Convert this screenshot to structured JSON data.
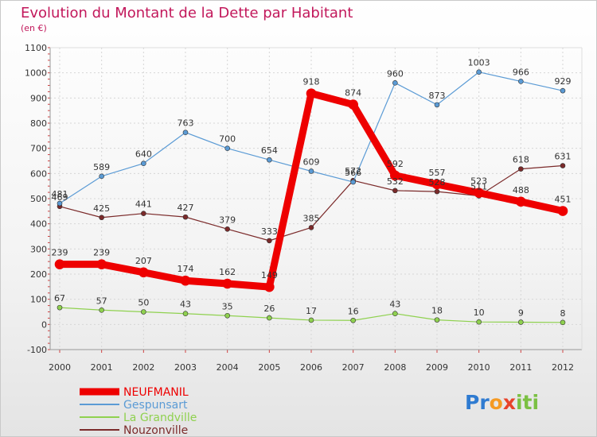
{
  "chart_data": {
    "type": "line",
    "title": "Evolution du Montant de la Dette par Habitant",
    "subtitle": "(en €)",
    "xlabel": "",
    "ylabel": "",
    "ylim": [
      -100,
      1100
    ],
    "y_ticks": [
      "-100",
      "0",
      "100",
      "200",
      "300",
      "400",
      "500",
      "600",
      "700",
      "800",
      "900",
      "1000",
      "1100"
    ],
    "categories": [
      "2000",
      "2001",
      "2002",
      "2003",
      "2004",
      "2005",
      "2006",
      "2007",
      "2008",
      "2009",
      "2010",
      "2011",
      "2012"
    ],
    "grid": true,
    "legend_position": "bottom-left",
    "series": [
      {
        "name": "NEUFMANIL",
        "color": "#ee0000",
        "values": [
          239,
          239,
          207,
          174,
          162,
          149,
          918,
          874,
          592,
          557,
          523,
          488,
          451
        ],
        "labels": [
          "239",
          "239",
          "207",
          "174",
          "162",
          "149",
          "918",
          "874",
          "592",
          "557",
          "523",
          "488",
          "451"
        ]
      },
      {
        "name": "Gespunsart",
        "color": "#5b9bd5",
        "values": [
          481,
          589,
          640,
          763,
          700,
          654,
          609,
          566,
          960,
          873,
          1003,
          966,
          929
        ],
        "labels": [
          "481",
          "589",
          "640",
          "763",
          "700",
          "654",
          "609",
          "566",
          "960",
          "873",
          "1003",
          "966",
          "929"
        ]
      },
      {
        "name": "La Grandville",
        "color": "#8fd14f",
        "values": [
          67,
          57,
          50,
          43,
          35,
          26,
          17,
          16,
          43,
          18,
          10,
          9,
          8
        ],
        "labels": [
          "67",
          "57",
          "50",
          "43",
          "35",
          "26",
          "17",
          "16",
          "43",
          "18",
          "10",
          "9",
          "8"
        ]
      },
      {
        "name": "Nouzonville",
        "color": "#7b2a2a",
        "values": [
          469,
          425,
          441,
          427,
          379,
          333,
          385,
          572,
          532,
          528,
          511,
          618,
          631
        ],
        "labels": [
          "469",
          "425",
          "441",
          "427",
          "379",
          "333",
          "385",
          "572",
          "532",
          "528",
          "511",
          "618",
          "631"
        ]
      }
    ]
  },
  "logo": {
    "text": "Proxiti"
  }
}
